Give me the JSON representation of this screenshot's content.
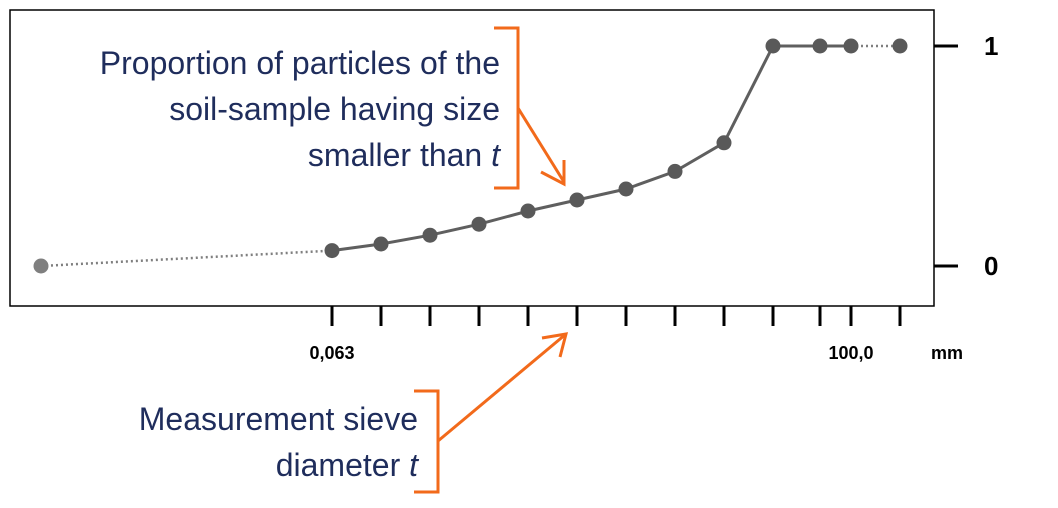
{
  "chart_data": {
    "type": "line",
    "x_tick_labels": [
      "0,063",
      "",
      "",
      "",
      "",
      "",
      "",
      "",
      "",
      "",
      "",
      "100,0",
      ""
    ],
    "x_unit": "mm",
    "y_tick_labels": [
      "0",
      "1"
    ],
    "ylim": [
      0,
      1
    ],
    "series": [
      {
        "points_left_extension": [
          0.0,
          0.07
        ],
        "values": [
          0.07,
          0.1,
          0.14,
          0.19,
          0.25,
          0.3,
          0.35,
          0.43,
          0.56,
          1.0,
          1.0,
          1.0
        ],
        "points_right_extension": [
          1.0,
          1.0
        ]
      }
    ],
    "grid": false,
    "legend": "none"
  },
  "annotations": {
    "proportion": {
      "line1": "Proportion of particles of the",
      "line2": "soil-sample having size",
      "line3_prefix": "smaller than ",
      "variable": "t"
    },
    "sieve": {
      "line1": "Measurement sieve",
      "line2_prefix": "diameter ",
      "variable": "t"
    }
  },
  "colors": {
    "series": "#5f5f5f",
    "marker": "#595959",
    "annotation_arrow": "#f26a1b",
    "annotation_text": "#1f2d5c"
  }
}
